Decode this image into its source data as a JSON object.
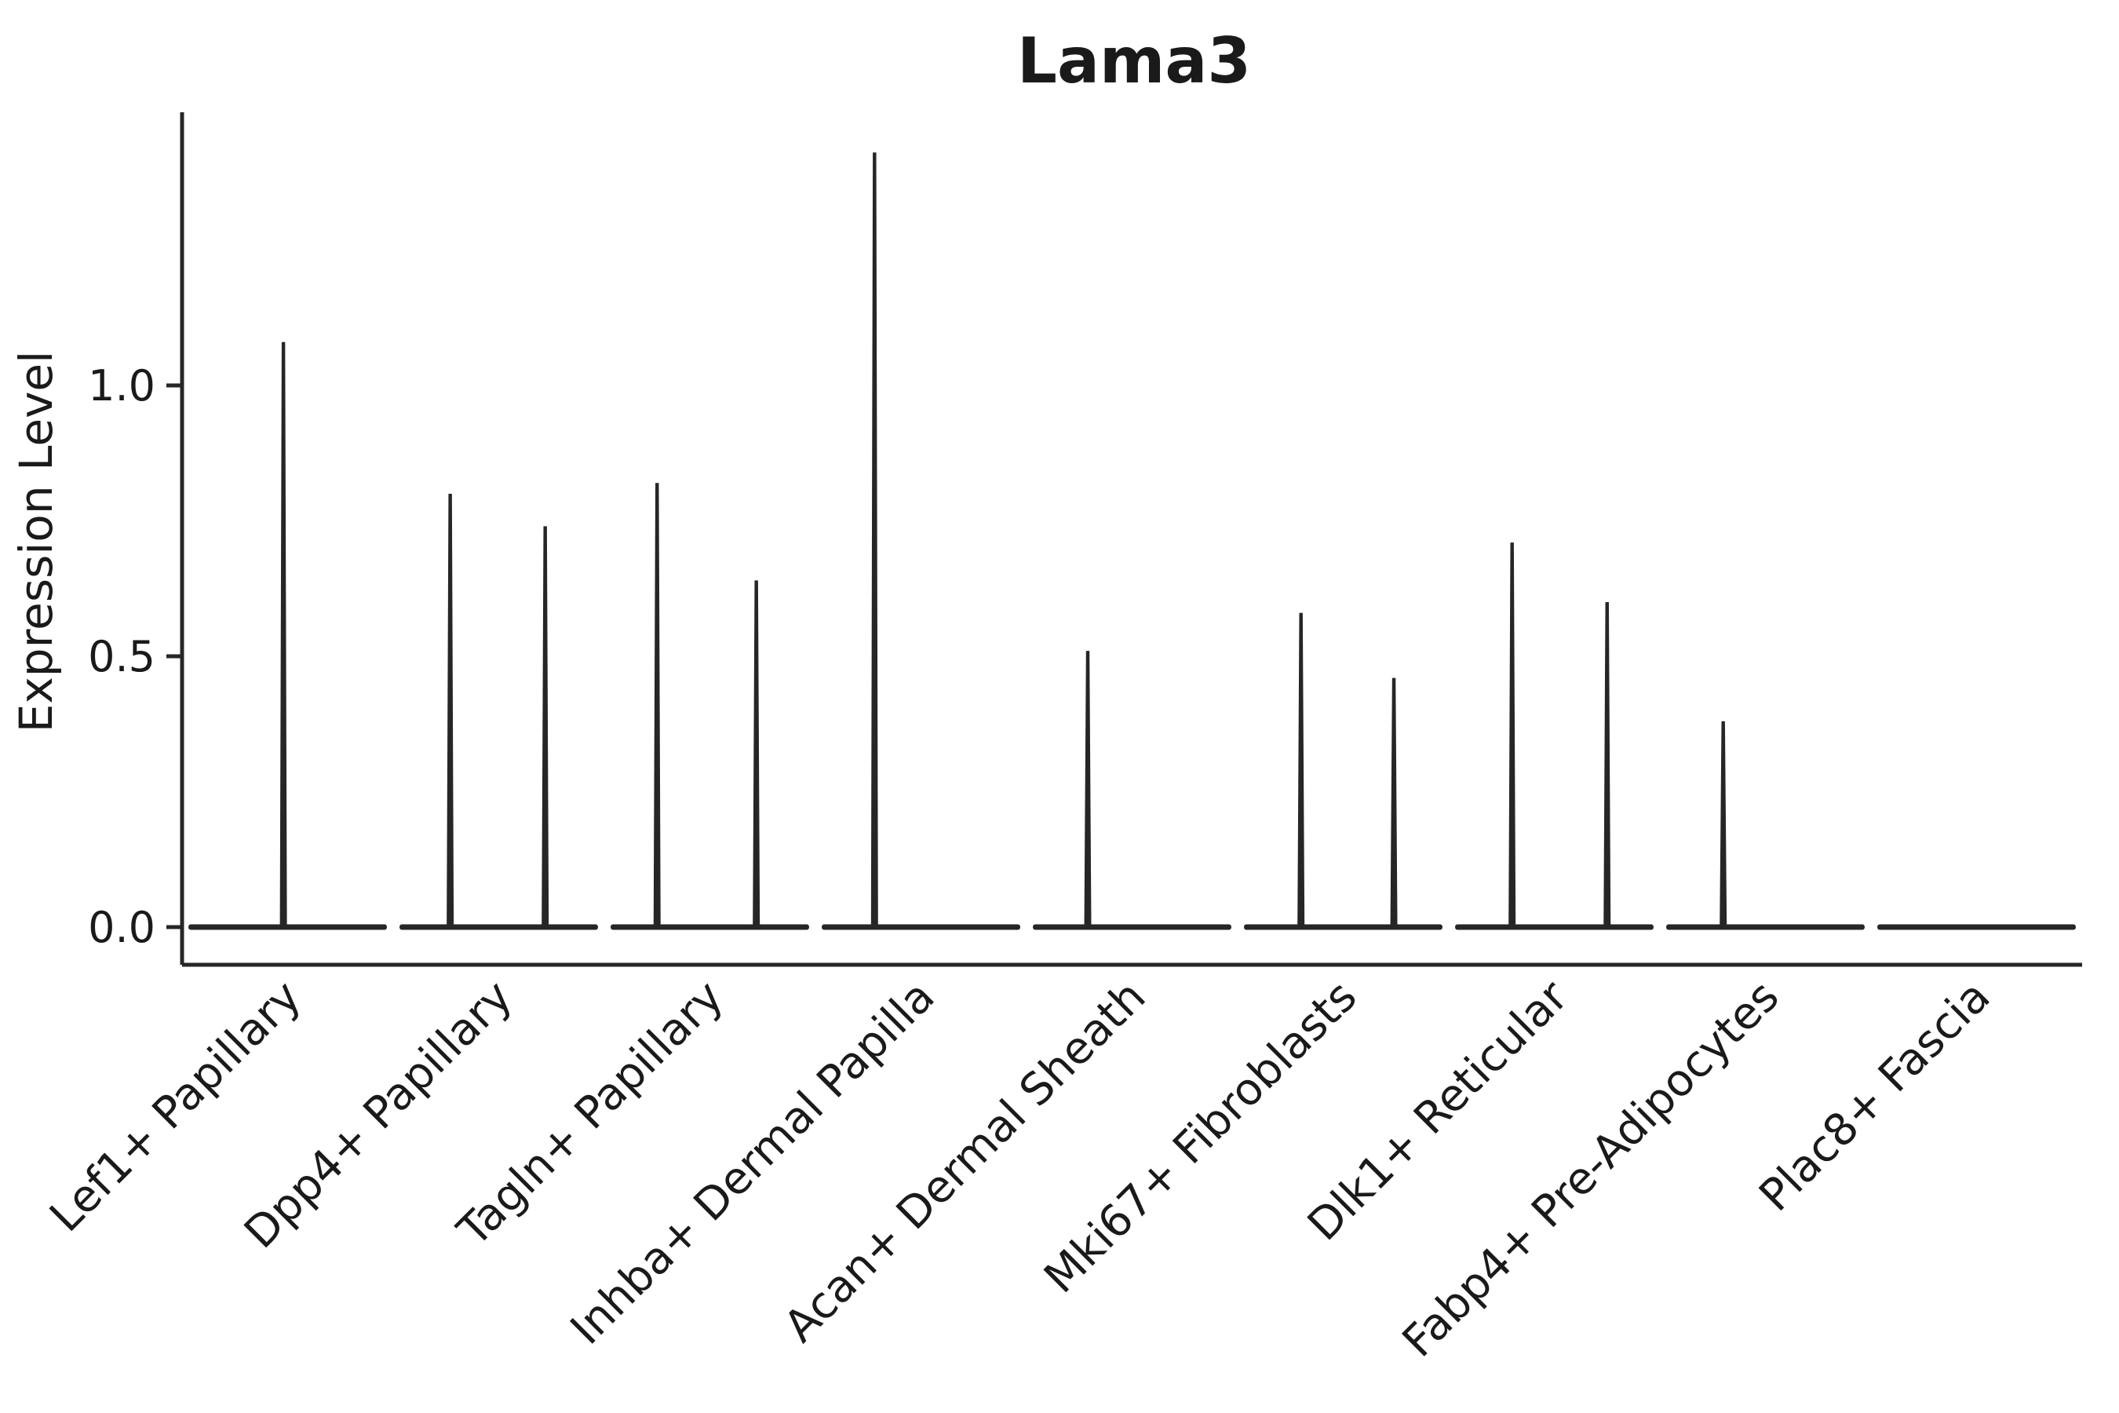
{
  "chart_data": {
    "type": "violin",
    "title": "Lama3",
    "ylabel": "Expression Level",
    "xlabel": "",
    "ylim": [
      -0.07,
      1.5
    ],
    "grid": false,
    "legend": false,
    "yticks": [
      {
        "value": 0.0,
        "label": "0.0"
      },
      {
        "value": 0.5,
        "label": "0.5"
      },
      {
        "value": 1.0,
        "label": "1.0"
      }
    ],
    "categories": [
      "Lef1+ Papillary",
      "Dpp4+ Papillary",
      "Tagln+ Papillary",
      "Inhba+ Dermal Papilla",
      "Acan+ Dermal Sheath",
      "Mki67+ Fibroblasts",
      "Dlk1+ Reticular",
      "Fabp4+ Pre-Adipocytes",
      "Plac8+ Fascia"
    ],
    "violins": [
      {
        "category": "Lef1+ Papillary",
        "baseline": 0.0,
        "spikes": [
          {
            "offset": -0.02,
            "max": 1.08
          }
        ]
      },
      {
        "category": "Dpp4+ Papillary",
        "baseline": 0.0,
        "spikes": [
          {
            "offset": -0.23,
            "max": 0.8
          },
          {
            "offset": 0.22,
            "max": 0.74
          }
        ]
      },
      {
        "category": "Tagln+ Papillary",
        "baseline": 0.0,
        "spikes": [
          {
            "offset": -0.25,
            "max": 0.82
          },
          {
            "offset": 0.22,
            "max": 0.64
          }
        ]
      },
      {
        "category": "Inhba+ Dermal Papilla",
        "baseline": 0.0,
        "spikes": [
          {
            "offset": -0.22,
            "max": 1.43
          }
        ]
      },
      {
        "category": "Acan+ Dermal Sheath",
        "baseline": 0.0,
        "spikes": [
          {
            "offset": -0.21,
            "max": 0.51
          }
        ]
      },
      {
        "category": "Mki67+ Fibroblasts",
        "baseline": 0.0,
        "spikes": [
          {
            "offset": -0.2,
            "max": 0.58
          },
          {
            "offset": 0.24,
            "max": 0.46
          }
        ]
      },
      {
        "category": "Dlk1+ Reticular",
        "baseline": 0.0,
        "spikes": [
          {
            "offset": -0.2,
            "max": 0.71
          },
          {
            "offset": 0.25,
            "max": 0.6
          }
        ]
      },
      {
        "category": "Fabp4+ Pre-Adipocytes",
        "baseline": 0.0,
        "spikes": [
          {
            "offset": -0.2,
            "max": 0.38
          }
        ]
      },
      {
        "category": "Plac8+ Fascia",
        "baseline": 0.0,
        "spikes": []
      }
    ],
    "colors": {
      "ink": "#262626",
      "background": "#ffffff"
    }
  }
}
